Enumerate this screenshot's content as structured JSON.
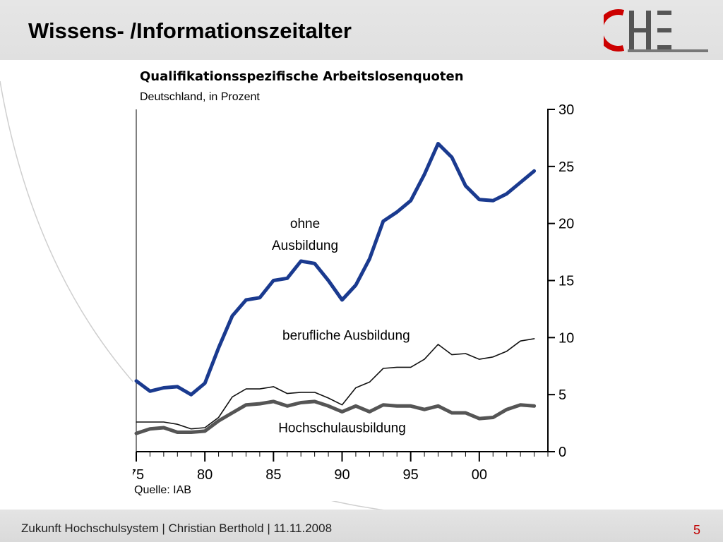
{
  "header": {
    "title": "Wissens- /Informationszeitalter"
  },
  "logo": {
    "text": "CHE",
    "colors": {
      "c": "#cc0000",
      "he": "#555555"
    }
  },
  "chart_data": {
    "type": "line",
    "title": "Qualifikationsspezifische Arbeitslosenquoten",
    "subtitle": "Deutschland, in Prozent",
    "source": "Quelle: IAB",
    "x_tick_labels": [
      "75",
      "80",
      "85",
      "90",
      "95",
      "00"
    ],
    "x_tick_values": [
      1975,
      1980,
      1985,
      1990,
      1995,
      2000
    ],
    "y_ticks": [
      0,
      5,
      10,
      15,
      20,
      25,
      30
    ],
    "xlim": [
      1975,
      2005
    ],
    "ylim": [
      0,
      30
    ],
    "y_axis_side": "right",
    "grid": false,
    "legend": "inline labels",
    "x": [
      1975,
      1976,
      1977,
      1978,
      1979,
      1980,
      1981,
      1982,
      1983,
      1984,
      1985,
      1986,
      1987,
      1988,
      1989,
      1990,
      1991,
      1992,
      1993,
      1994,
      1995,
      1996,
      1997,
      1998,
      1999,
      2000,
      2001,
      2002,
      2003,
      2004
    ],
    "series": [
      {
        "name": "ohne Ausbildung",
        "label_lines": [
          "ohne",
          "Ausbildung"
        ],
        "color": "#1a3a8f",
        "values": [
          6.2,
          5.3,
          5.6,
          5.7,
          5.0,
          6.0,
          9.1,
          11.9,
          13.3,
          13.5,
          15.0,
          15.2,
          16.7,
          16.5,
          15.0,
          13.3,
          14.6,
          16.9,
          20.2,
          21.0,
          22.0,
          24.3,
          27.0,
          25.8,
          23.3,
          22.1,
          22.0,
          22.6,
          23.6,
          24.6
        ]
      },
      {
        "name": "berufliche Ausbildung",
        "color": "#111111",
        "values": [
          2.6,
          2.6,
          2.6,
          2.4,
          2.0,
          2.1,
          3.0,
          4.8,
          5.5,
          5.5,
          5.7,
          5.1,
          5.2,
          5.2,
          4.7,
          4.1,
          5.6,
          6.1,
          7.3,
          7.4,
          7.4,
          8.1,
          9.4,
          8.5,
          8.6,
          8.1,
          8.3,
          8.8,
          9.7,
          9.9
        ]
      },
      {
        "name": "Hochschulausbildung",
        "color": "#555555",
        "values": [
          1.6,
          2.0,
          2.1,
          1.7,
          1.7,
          1.8,
          2.7,
          3.4,
          4.1,
          4.2,
          4.4,
          4.0,
          4.3,
          4.4,
          4.0,
          3.5,
          4.0,
          3.5,
          4.1,
          4.0,
          4.0,
          3.7,
          4.0,
          3.4,
          3.4,
          2.9,
          3.0,
          3.7,
          4.1,
          4.0
        ]
      }
    ]
  },
  "footer": {
    "text": "Zukunft Hochschulsystem | Christian Berthold | 11.11.2008",
    "page_number": "5"
  }
}
